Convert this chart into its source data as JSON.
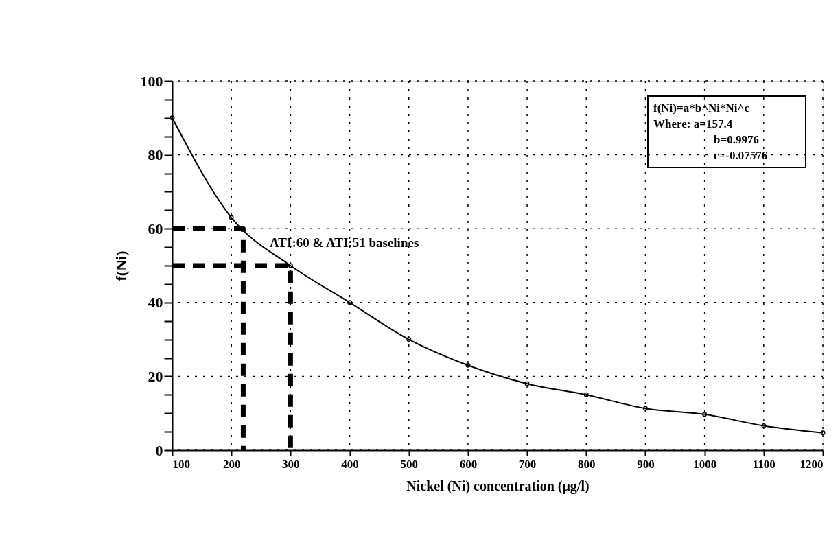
{
  "chart_data": {
    "type": "line",
    "xlabel": "Nickel (Ni) concentration (μg/l)",
    "ylabel": "f(Ni)",
    "xlim": [
      100,
      1200
    ],
    "xticks": [
      100,
      200,
      300,
      400,
      500,
      600,
      700,
      800,
      900,
      1000,
      1100,
      1200
    ],
    "ylim": [
      0,
      100
    ],
    "yticks": [
      0,
      {
        "value": 5,
        "label": null
      },
      {
        "value": 10,
        "label": null
      },
      {
        "value": 15,
        "label": null
      },
      20,
      {
        "value": 25,
        "label": null
      },
      {
        "value": 30,
        "label": null
      },
      {
        "value": 35,
        "label": null
      },
      40,
      {
        "value": 45,
        "label": null
      },
      {
        "value": 50,
        "label": null
      },
      {
        "value": 55,
        "label": null
      },
      60,
      {
        "value": 65,
        "label": null
      },
      {
        "value": 70,
        "label": null
      },
      {
        "value": 75,
        "label": null
      },
      80,
      {
        "value": 85,
        "label": null
      },
      {
        "value": 90,
        "label": null
      },
      {
        "value": 95,
        "label": null
      },
      100
    ],
    "grid": true,
    "series": [
      {
        "color": "#000000",
        "marker": "circle",
        "line_style": "solid",
        "x": [
          100,
          200,
          300,
          400,
          500,
          600,
          700,
          800,
          900,
          1000,
          1100,
          1200
        ],
        "values": [
          90,
          63,
          50,
          40,
          30,
          23,
          18,
          15,
          11.3,
          9.7,
          6.6,
          4.7
        ]
      },
      {
        "color": "#000000",
        "marker": "none",
        "line_style": "dashed",
        "x": [
          100,
          220,
          220
        ],
        "values": [
          60,
          60,
          0
        ]
      },
      {
        "color": "#000000",
        "marker": "none",
        "line_style": "dashed",
        "x": [
          100,
          300,
          300
        ],
        "values": [
          50,
          50,
          0
        ]
      }
    ],
    "annotations": [
      "ATI:60 & ATI:51 baselines",
      "f(Ni)=a*b^Ni*Ni^c",
      "Where:  a=157.4",
      "b=0.9976",
      "c=-0.07576"
    ]
  }
}
